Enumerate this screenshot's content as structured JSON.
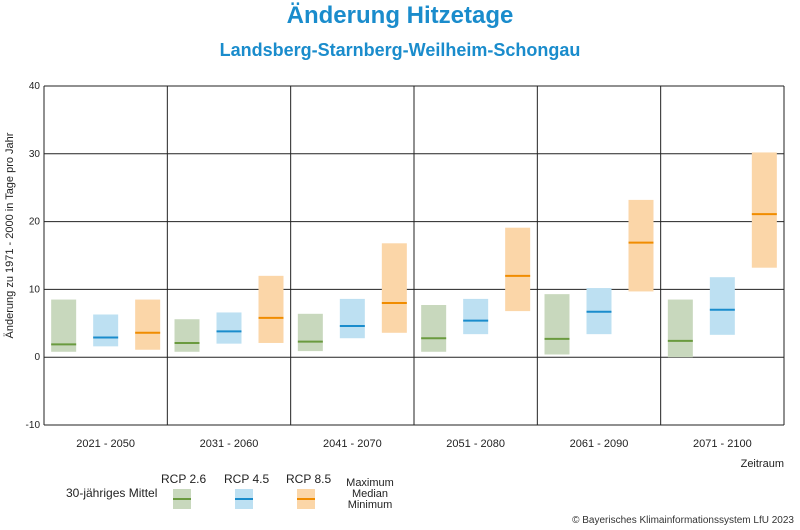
{
  "header": {
    "title": "Änderung Hitzetage",
    "subtitle": "Landsberg-Starnberg-Weilheim-Schongau"
  },
  "legend": {
    "mean_label": "30-jähriges Mittel",
    "stats": [
      "Maximum",
      "Median",
      "Minimum"
    ],
    "items": [
      {
        "name": "RCP 2.6",
        "fill": "#c8d8bd",
        "line": "#6a9a3f"
      },
      {
        "name": "RCP 4.5",
        "fill": "#bde0f2",
        "line": "#1a8ccc"
      },
      {
        "name": "RCP 8.5",
        "fill": "#fbd6a8",
        "line": "#f08c00"
      }
    ]
  },
  "footer": {
    "copyright": "© Bayerisches Klimainformationssystem LfU 2023"
  },
  "chart_data": {
    "type": "bar",
    "title": "Änderung Hitzetage",
    "subtitle": "Landsberg-Starnberg-Weilheim-Schongau",
    "xlabel": "Zeitraum",
    "ylabel": "Änderung zu 1971 - 2000 in Tage pro Jahr",
    "ylim": [
      -10,
      40
    ],
    "yticks": [
      -10,
      0,
      10,
      20,
      30,
      40
    ],
    "grid": true,
    "categories": [
      "2021 - 2050",
      "2031 - 2060",
      "2041 - 2070",
      "2051 - 2080",
      "2061 - 2090",
      "2071 - 2100"
    ],
    "series": [
      {
        "name": "RCP 2.6",
        "min": [
          0.8,
          0.8,
          0.9,
          0.8,
          0.4,
          0.0
        ],
        "median": [
          1.9,
          2.1,
          2.3,
          2.8,
          2.7,
          2.4
        ],
        "max": [
          8.5,
          5.6,
          6.4,
          7.7,
          9.3,
          8.5
        ]
      },
      {
        "name": "RCP 4.5",
        "min": [
          1.6,
          2.0,
          2.8,
          3.4,
          3.4,
          3.3
        ],
        "median": [
          2.9,
          3.8,
          4.6,
          5.4,
          6.7,
          7.0
        ],
        "max": [
          6.3,
          6.6,
          8.6,
          8.6,
          10.2,
          11.8
        ]
      },
      {
        "name": "RCP 8.5",
        "min": [
          1.1,
          2.1,
          3.6,
          6.8,
          9.7,
          13.2
        ],
        "median": [
          3.6,
          5.8,
          8.0,
          12.0,
          16.9,
          21.1
        ],
        "max": [
          8.5,
          12.0,
          16.8,
          19.1,
          23.2,
          30.2
        ]
      }
    ]
  }
}
